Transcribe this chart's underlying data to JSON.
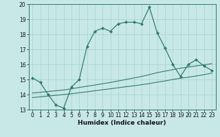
{
  "xlabel": "Humidex (Indice chaleur)",
  "bg_color": "#c8e8e8",
  "line_color": "#2d7a6a",
  "grid_color": "#a8d0d0",
  "xlim": [
    -0.5,
    23.5
  ],
  "ylim": [
    13,
    20
  ],
  "yticks": [
    13,
    14,
    15,
    16,
    17,
    18,
    19,
    20
  ],
  "xticks": [
    0,
    1,
    2,
    3,
    4,
    5,
    6,
    7,
    8,
    9,
    10,
    11,
    12,
    13,
    14,
    15,
    16,
    17,
    18,
    19,
    20,
    21,
    22,
    23
  ],
  "line1_x": [
    0,
    1,
    2,
    3,
    4,
    5,
    6,
    7,
    8,
    9,
    10,
    11,
    12,
    13,
    14,
    15,
    16,
    17,
    18,
    19,
    20,
    21,
    22,
    23
  ],
  "line1_y": [
    15.1,
    14.8,
    14.0,
    13.3,
    13.1,
    14.5,
    15.0,
    17.2,
    18.2,
    18.4,
    18.2,
    18.7,
    18.8,
    18.8,
    18.7,
    19.8,
    18.1,
    17.1,
    16.0,
    15.2,
    16.0,
    16.3,
    15.9,
    15.6
  ],
  "line2_x": [
    0,
    1,
    2,
    3,
    4,
    5,
    6,
    7,
    8,
    9,
    10,
    11,
    12,
    13,
    14,
    15,
    16,
    17,
    18,
    19,
    20,
    21,
    22,
    23
  ],
  "line2_y": [
    13.8,
    13.85,
    13.9,
    13.95,
    14.0,
    14.05,
    14.12,
    14.18,
    14.25,
    14.32,
    14.38,
    14.45,
    14.52,
    14.58,
    14.65,
    14.73,
    14.82,
    14.9,
    15.0,
    15.08,
    15.15,
    15.23,
    15.32,
    15.42
  ],
  "line3_x": [
    0,
    1,
    2,
    3,
    4,
    5,
    6,
    7,
    8,
    9,
    10,
    11,
    12,
    13,
    14,
    15,
    16,
    17,
    18,
    19,
    20,
    21,
    22,
    23
  ],
  "line3_y": [
    14.1,
    14.15,
    14.2,
    14.25,
    14.3,
    14.38,
    14.47,
    14.55,
    14.63,
    14.72,
    14.8,
    14.9,
    15.0,
    15.1,
    15.2,
    15.32,
    15.45,
    15.55,
    15.65,
    15.75,
    15.82,
    15.9,
    15.97,
    16.05
  ]
}
